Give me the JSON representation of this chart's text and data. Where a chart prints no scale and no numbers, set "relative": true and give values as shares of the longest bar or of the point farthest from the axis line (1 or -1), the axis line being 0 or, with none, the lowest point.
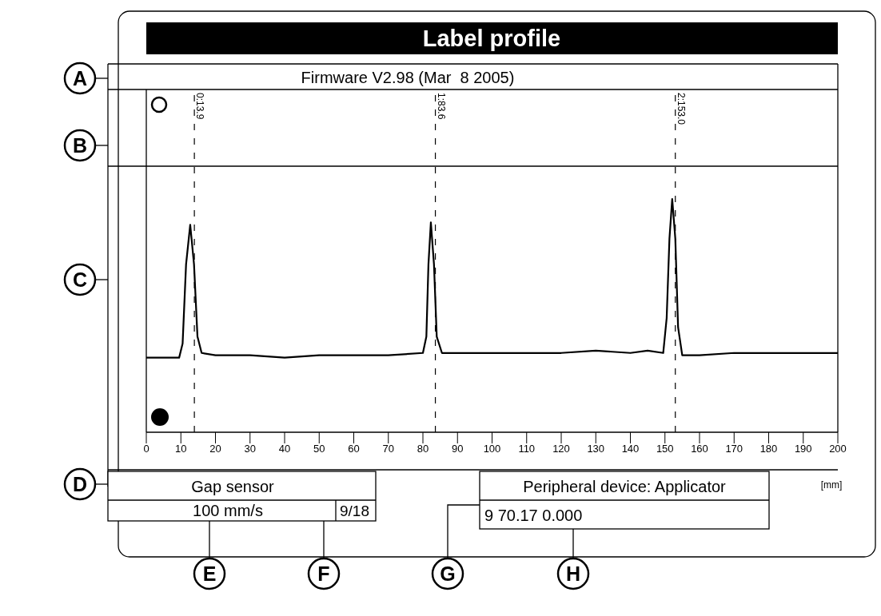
{
  "chart_data": {
    "type": "line",
    "title": "Label profile",
    "subtitle": "Firmware V2.98 (Mar  8 2005)",
    "xlabel": "[mm]",
    "relative": true,
    "marker": "none",
    "line_style": "solid",
    "x": [
      0,
      5,
      9.5,
      10.5,
      11.5,
      12.7,
      13.8,
      14.8,
      16,
      20,
      30,
      40,
      50,
      60,
      70,
      80,
      81,
      81.6,
      82.3,
      83.2,
      84,
      85.5,
      90,
      100,
      110,
      120,
      130,
      140,
      145,
      149.5,
      150.5,
      151.3,
      152.1,
      153,
      153.8,
      155,
      160,
      170,
      180,
      190,
      200
    ],
    "series": [
      {
        "color": "#000000",
        "values": [
          0.32,
          0.32,
          0.32,
          0.38,
          0.72,
          0.89,
          0.72,
          0.41,
          0.34,
          0.33,
          0.33,
          0.32,
          0.33,
          0.33,
          0.33,
          0.34,
          0.41,
          0.72,
          0.9,
          0.72,
          0.41,
          0.34,
          0.34,
          0.34,
          0.34,
          0.34,
          0.35,
          0.34,
          0.35,
          0.34,
          0.49,
          0.83,
          1,
          0.83,
          0.45,
          0.33,
          0.33,
          0.34,
          0.34,
          0.34,
          0.34
        ]
      }
    ],
    "xlim": [
      0,
      200
    ],
    "xticks": [
      0,
      10,
      20,
      30,
      40,
      50,
      60,
      70,
      80,
      90,
      100,
      110,
      120,
      130,
      140,
      150,
      160,
      170,
      180,
      190,
      200
    ],
    "ref_lines": [
      {
        "axis": "x",
        "value": 13.9,
        "label": "0:13.9",
        "line_style": "dashed"
      },
      {
        "axis": "x",
        "value": 83.6,
        "label": "1:83.6",
        "line_style": "dashed"
      },
      {
        "axis": "x",
        "value": 153.0,
        "label": "2:153.0",
        "line_style": "dashed"
      }
    ],
    "annotations": [
      "A",
      "B",
      "C",
      "D",
      "E",
      "F",
      "G",
      "H",
      "Gap sensor",
      "100 mm/s",
      "9/18",
      "Peripheral device: Applicator",
      "9 70.17 0.000"
    ]
  }
}
